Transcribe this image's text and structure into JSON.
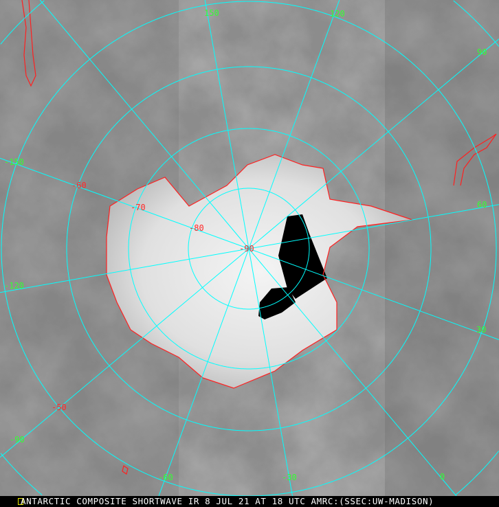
{
  "caption": "ANTARCTIC COMPOSITE SHORTWAVE IR 8 JUL 21 AT 18 UTC AMRC:(SSEC:UW-MADISON)",
  "longitude_labels": [
    "150",
    "120",
    "90",
    "60",
    "30",
    "0",
    "-30",
    "-60",
    "-90",
    "-120",
    "-150"
  ],
  "latitude_labels": [
    "-90",
    "-80",
    "-70",
    "-60",
    "-50"
  ],
  "colors": {
    "grid": "#00ffff",
    "coastline": "#ff2020",
    "longitude_label": "#33ff33",
    "latitude_label": "#ff2a2a",
    "missing_data": "#000000"
  },
  "icons": {
    "caption_marker": "yellow-marker-icon"
  }
}
